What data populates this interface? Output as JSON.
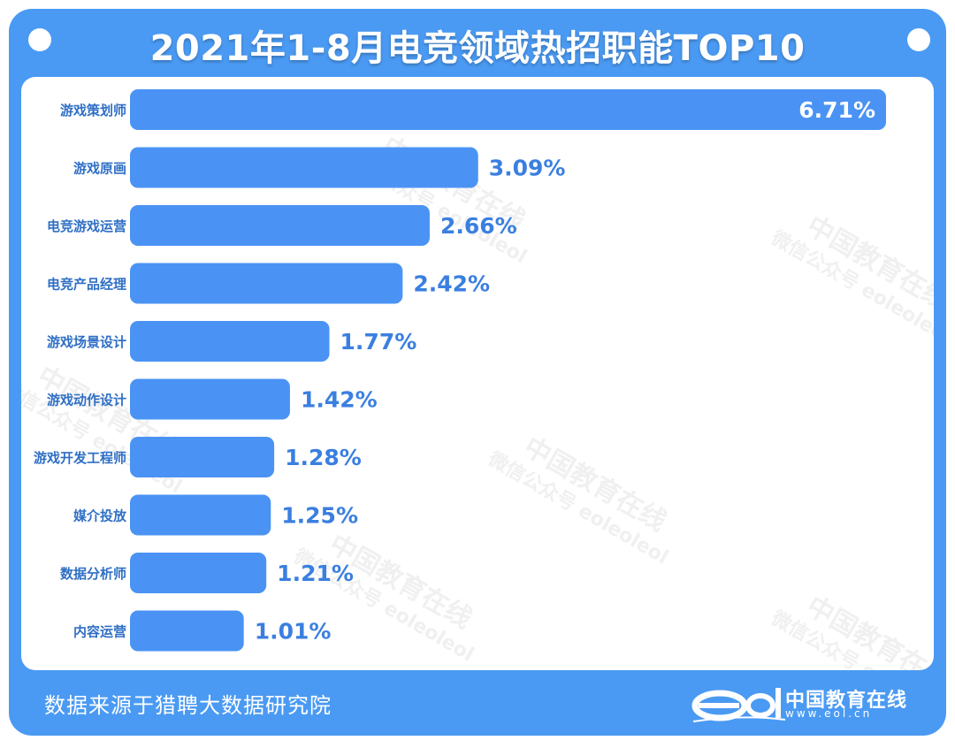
{
  "header": {
    "title": "2021年1-8月电竞领域热招职能TOP10"
  },
  "footer": {
    "source": "数据来源于猎聘大数据研究院"
  },
  "brand": {
    "name": "中国教育在线",
    "url": "www.eol.cn",
    "logo_text": "eol"
  },
  "watermark": {
    "line1": "中国教育在线",
    "line2": "微信公众号 eoleoleol"
  },
  "colors": {
    "frame": "#4a9af3",
    "bar": "#4a93f4",
    "label": "#2f6fc4",
    "value_out": "#3a7fe0",
    "value_in": "#ffffff"
  },
  "chart_data": {
    "type": "bar",
    "orientation": "horizontal",
    "title": "2021年1-8月电竞领域热招职能TOP10",
    "categories": [
      "游戏策划师",
      "游戏原画",
      "电竞游戏运营",
      "电竞产品经理",
      "游戏场景设计",
      "游戏动作设计",
      "游戏开发工程师",
      "媒介投放",
      "数据分析师",
      "内容运营"
    ],
    "values": [
      6.71,
      3.09,
      2.66,
      2.42,
      1.77,
      1.42,
      1.28,
      1.25,
      1.21,
      1.01
    ],
    "value_labels": [
      "6.71%",
      "3.09%",
      "2.66%",
      "2.42%",
      "1.77%",
      "1.42%",
      "1.28%",
      "1.25%",
      "1.21%",
      "1.01%"
    ],
    "unit": "%",
    "xlim": [
      0,
      6.71
    ],
    "grid": false,
    "legend": "none"
  }
}
